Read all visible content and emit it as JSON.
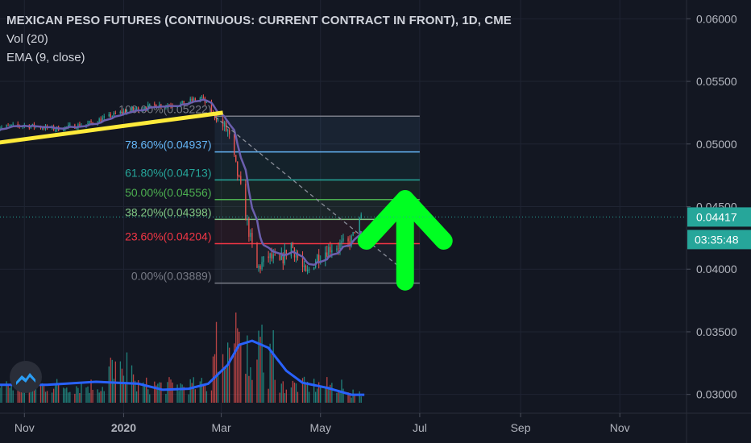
{
  "legend": {
    "title": "MEXICAN PESO FUTURES (CONTINUOUS: CURRENT CONTRACT IN FRONT), 1D, CME",
    "volume_label": "Vol (20)",
    "ema_label": "EMA (9, close)"
  },
  "colors": {
    "background": "#131722",
    "text": "#b2b5be",
    "up": "#26a69a",
    "down": "#ef5350",
    "ema": "#6b5fae",
    "volume_ma": "#2962ff",
    "trendline": "#ffeb3b",
    "arrow": "#00ff22",
    "last_price_badge": "#26a69a",
    "countdown_badge": "#26a69a"
  },
  "chart_data": {
    "type": "candlestick",
    "symbol": "MEXICAN PESO FUTURES (CONTINUOUS: CURRENT CONTRACT IN FRONT)",
    "interval": "1D",
    "exchange": "CME",
    "x_ticks": [
      "Nov",
      "2020",
      "Mar",
      "May",
      "Jul",
      "Sep",
      "Nov"
    ],
    "x_tick_dates": [
      "2019-11-01",
      "2020-01-01",
      "2020-03-01",
      "2020-05-01",
      "2020-07-01",
      "2020-09-01",
      "2020-11-01"
    ],
    "y_ticks": [
      "0.06000",
      "0.05500",
      "0.05000",
      "0.04500",
      "0.04000",
      "0.03500",
      "0.03000"
    ],
    "y_tick_values": [
      0.06,
      0.055,
      0.05,
      0.045,
      0.04,
      0.035,
      0.03
    ],
    "ylim": [
      0.0285,
      0.0615
    ],
    "xlim": [
      "2019-10-17",
      "2020-12-12"
    ],
    "last_price": "0.04417",
    "countdown": "03:35:48",
    "price_path": [
      {
        "date": "2019-10-15",
        "close": 0.0513
      },
      {
        "date": "2019-11-01",
        "close": 0.0515
      },
      {
        "date": "2019-11-20",
        "close": 0.0512
      },
      {
        "date": "2019-12-10",
        "close": 0.0516
      },
      {
        "date": "2020-01-01",
        "close": 0.0526
      },
      {
        "date": "2020-01-20",
        "close": 0.0531
      },
      {
        "date": "2020-02-05",
        "close": 0.0532
      },
      {
        "date": "2020-02-18",
        "close": 0.0537
      },
      {
        "date": "2020-02-26",
        "close": 0.0522
      },
      {
        "date": "2020-03-05",
        "close": 0.051
      },
      {
        "date": "2020-03-12",
        "close": 0.047
      },
      {
        "date": "2020-03-18",
        "close": 0.043
      },
      {
        "date": "2020-03-23",
        "close": 0.04
      },
      {
        "date": "2020-03-30",
        "close": 0.041
      },
      {
        "date": "2020-04-06",
        "close": 0.0405
      },
      {
        "date": "2020-04-13",
        "close": 0.042
      },
      {
        "date": "2020-04-22",
        "close": 0.0395
      },
      {
        "date": "2020-04-29",
        "close": 0.041
      },
      {
        "date": "2020-05-08",
        "close": 0.0418
      },
      {
        "date": "2020-05-18",
        "close": 0.042
      },
      {
        "date": "2020-05-26",
        "close": 0.0442
      }
    ],
    "fibonacci": {
      "levels": [
        {
          "label": "100.00%(0.05222)",
          "ratio": 1.0,
          "price": 0.05222,
          "color": "#787b86"
        },
        {
          "label": "78.60%(0.04937)",
          "ratio": 0.786,
          "price": 0.04937,
          "color": "#64b5f6"
        },
        {
          "label": "61.80%(0.04713)",
          "ratio": 0.618,
          "price": 0.04713,
          "color": "#26a69a"
        },
        {
          "label": "50.00%(0.04556)",
          "ratio": 0.5,
          "price": 0.04556,
          "color": "#4caf50"
        },
        {
          "label": "38.20%(0.04398)",
          "ratio": 0.382,
          "price": 0.04398,
          "color": "#81c784"
        },
        {
          "label": "23.60%(0.04204)",
          "ratio": 0.236,
          "price": 0.04204,
          "color": "#f23645"
        },
        {
          "label": "0.00%(0.03889)",
          "ratio": 0.0,
          "price": 0.03889,
          "color": "#787b86"
        }
      ],
      "start_date": "2020-02-26",
      "end_date": "2020-07-01"
    },
    "trendline": {
      "from": {
        "date": "2019-10-10",
        "price": 0.05
      },
      "to": {
        "date": "2020-03-02",
        "price": 0.0525
      }
    },
    "diagonal": {
      "from": {
        "date": "2020-02-26",
        "price": 0.0522
      },
      "to": {
        "date": "2020-06-25",
        "price": 0.0395
      }
    },
    "annotation_arrow": {
      "direction": "up",
      "date": "2020-06-22",
      "base_price": 0.039,
      "tip_price": 0.046
    },
    "volume_pane": {
      "label": "Vol (20)",
      "top_price_equivalent": 0.036,
      "moving_average_path": [
        {
          "date": "2019-10-15",
          "ma": 0.18
        },
        {
          "date": "2019-11-15",
          "ma": 0.18
        },
        {
          "date": "2019-12-15",
          "ma": 0.21
        },
        {
          "date": "2020-01-10",
          "ma": 0.19
        },
        {
          "date": "2020-01-25",
          "ma": 0.13
        },
        {
          "date": "2020-02-10",
          "ma": 0.14
        },
        {
          "date": "2020-02-22",
          "ma": 0.19
        },
        {
          "date": "2020-03-05",
          "ma": 0.38
        },
        {
          "date": "2020-03-12",
          "ma": 0.58
        },
        {
          "date": "2020-03-20",
          "ma": 0.62
        },
        {
          "date": "2020-03-30",
          "ma": 0.55
        },
        {
          "date": "2020-04-10",
          "ma": 0.32
        },
        {
          "date": "2020-04-20",
          "ma": 0.2
        },
        {
          "date": "2020-05-05",
          "ma": 0.15
        },
        {
          "date": "2020-05-20",
          "ma": 0.08
        },
        {
          "date": "2020-05-28",
          "ma": 0.08
        }
      ]
    }
  }
}
